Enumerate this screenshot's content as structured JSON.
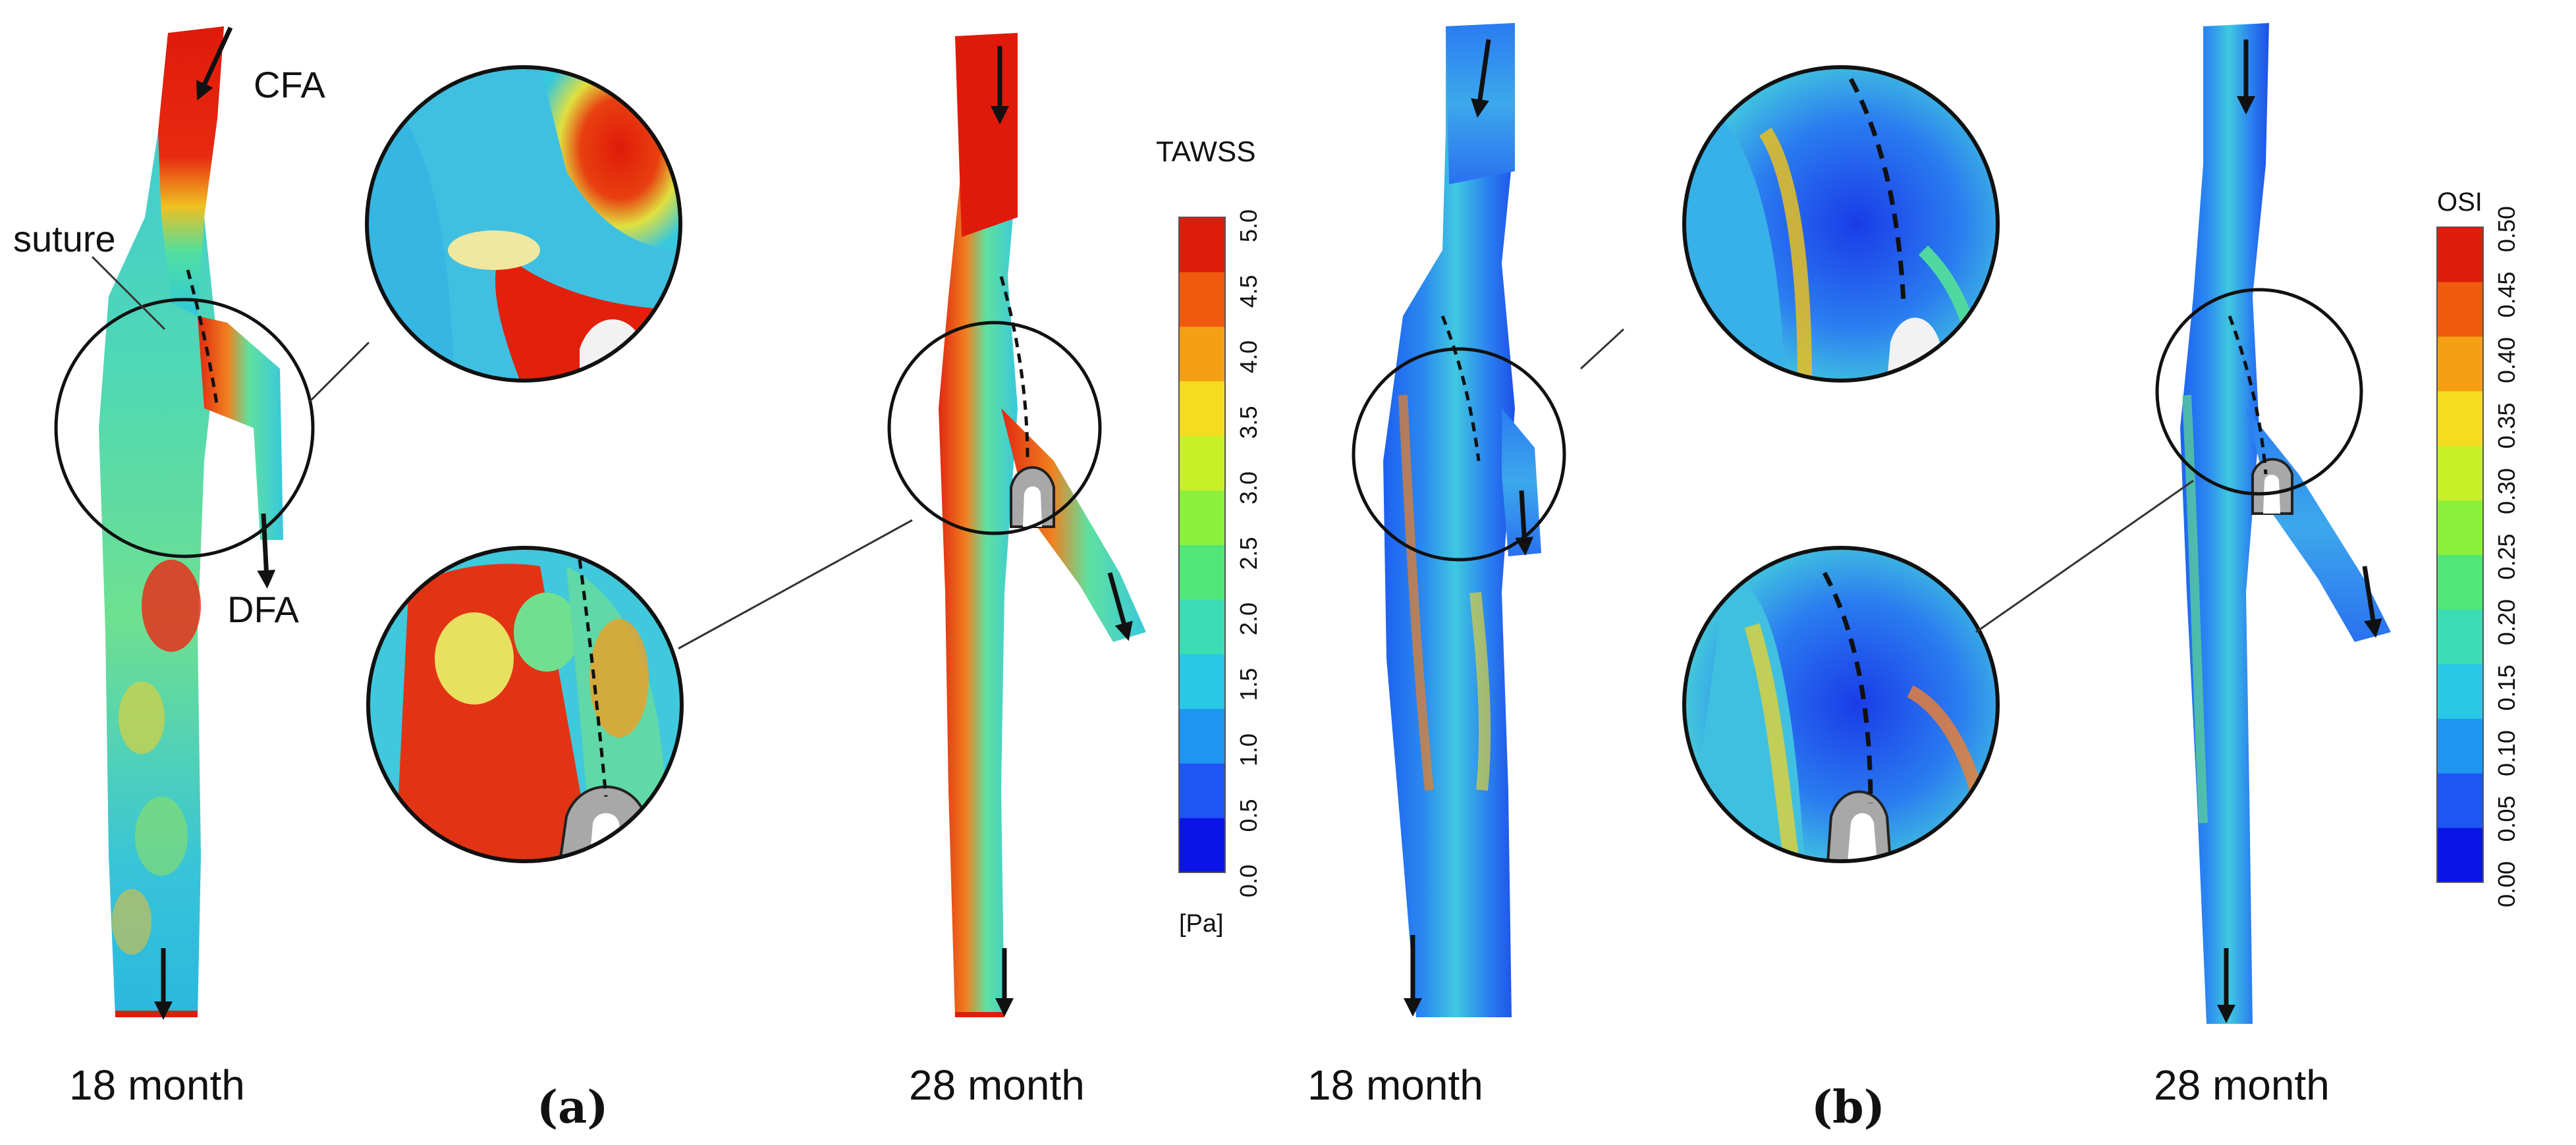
{
  "panels": {
    "a": {
      "label": "(a)",
      "left_caption": "18 month",
      "right_caption": "28 month",
      "annotations": {
        "cfa": "CFA",
        "dfa": "DFA",
        "suture": "suture"
      },
      "colorbar": {
        "title": "TAWSS",
        "unit": "[Pa]",
        "ticks": [
          "5.0",
          "4.5",
          "4.0",
          "3.5",
          "3.0",
          "2.5",
          "2.0",
          "1.5",
          "1.0",
          "0.5",
          "0.0"
        ]
      }
    },
    "b": {
      "label": "(b)",
      "left_caption": "18 month",
      "right_caption": "28 month",
      "colorbar": {
        "title": "OSI",
        "ticks": [
          "0.50",
          "0.45",
          "0.40",
          "0.35",
          "0.30",
          "0.25",
          "0.20",
          "0.15",
          "0.10",
          "0.05",
          "0.00"
        ]
      }
    }
  },
  "colors": {
    "jet": [
      "#0a14e6",
      "#1e55f5",
      "#1e96f0",
      "#28c8e6",
      "#3cdcb4",
      "#50e678",
      "#8cf03c",
      "#c8f028",
      "#f5dc1e",
      "#f5a014",
      "#f05a0f",
      "#dc1e0a"
    ],
    "bypass_gray": "#a8a8a8",
    "arrow": "#111111"
  }
}
